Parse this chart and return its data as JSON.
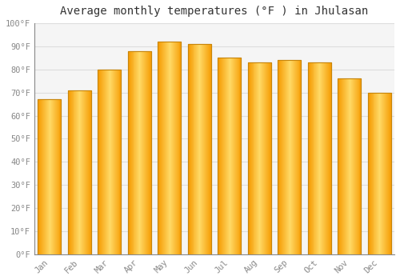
{
  "title": "Average monthly temperatures (°F ) in Jhulasan",
  "months": [
    "Jan",
    "Feb",
    "Mar",
    "Apr",
    "May",
    "Jun",
    "Jul",
    "Aug",
    "Sep",
    "Oct",
    "Nov",
    "Dec"
  ],
  "values": [
    67,
    71,
    80,
    88,
    92,
    91,
    85,
    83,
    84,
    83,
    76,
    70
  ],
  "bar_color_center": "#FFB300",
  "bar_color_edge": "#F5A623",
  "bar_color_light": "#FFD966",
  "background_color": "#FFFFFF",
  "plot_bg_color": "#F5F5F5",
  "ylim": [
    0,
    100
  ],
  "yticks": [
    0,
    10,
    20,
    30,
    40,
    50,
    60,
    70,
    80,
    90,
    100
  ],
  "ytick_labels": [
    "0°F",
    "10°F",
    "20°F",
    "30°F",
    "40°F",
    "50°F",
    "60°F",
    "70°F",
    "80°F",
    "90°F",
    "100°F"
  ],
  "title_fontsize": 10,
  "tick_fontsize": 7.5,
  "grid_color": "#DDDDDD",
  "bar_edge_color": "#C8860A",
  "bar_width": 0.78,
  "figsize": [
    5.0,
    3.5
  ],
  "dpi": 100
}
